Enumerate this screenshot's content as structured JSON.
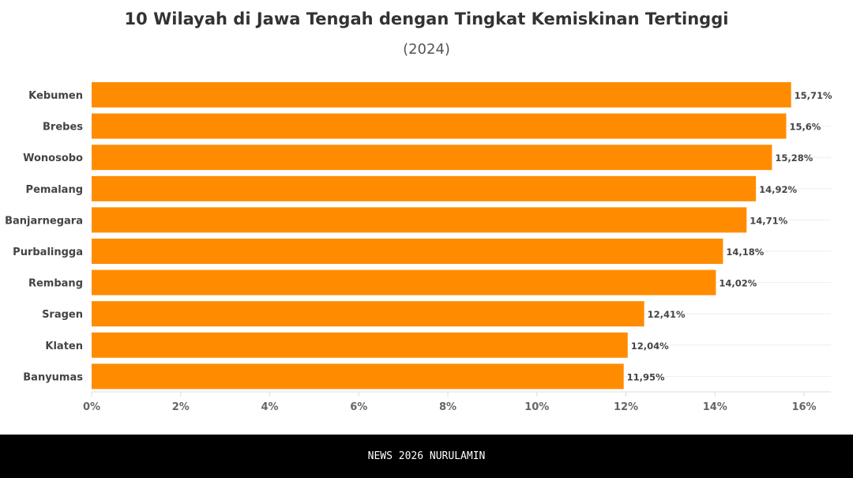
{
  "chart_data": {
    "type": "bar",
    "orientation": "horizontal",
    "title": "10 Wilayah di Jawa Tengah dengan Tingkat Kemiskinan Tertinggi",
    "subtitle": "(2024)",
    "categories": [
      "Kebumen",
      "Brebes",
      "Wonosobo",
      "Pemalang",
      "Banjarnegara",
      "Purbalingga",
      "Rembang",
      "Sragen",
      "Klaten",
      "Banyumas"
    ],
    "values": [
      15.71,
      15.6,
      15.28,
      14.92,
      14.71,
      14.18,
      14.02,
      12.41,
      12.04,
      11.95
    ],
    "data_labels": [
      "15,71%",
      "15,6%",
      "15,28%",
      "14,92%",
      "14,71%",
      "14,18%",
      "14,02%",
      "12,41%",
      "12,04%",
      "11,95%"
    ],
    "xlim": [
      0,
      16.6
    ],
    "x_ticks": [
      0,
      2,
      4,
      6,
      8,
      10,
      12,
      14,
      16
    ],
    "x_tick_labels": [
      "0%",
      "2%",
      "4%",
      "6%",
      "8%",
      "10%",
      "12%",
      "14%",
      "16%"
    ],
    "grid": true,
    "bar_color": "#ff8c00"
  },
  "footer": {
    "text": "NEWS 2026 NURULAMIN"
  }
}
